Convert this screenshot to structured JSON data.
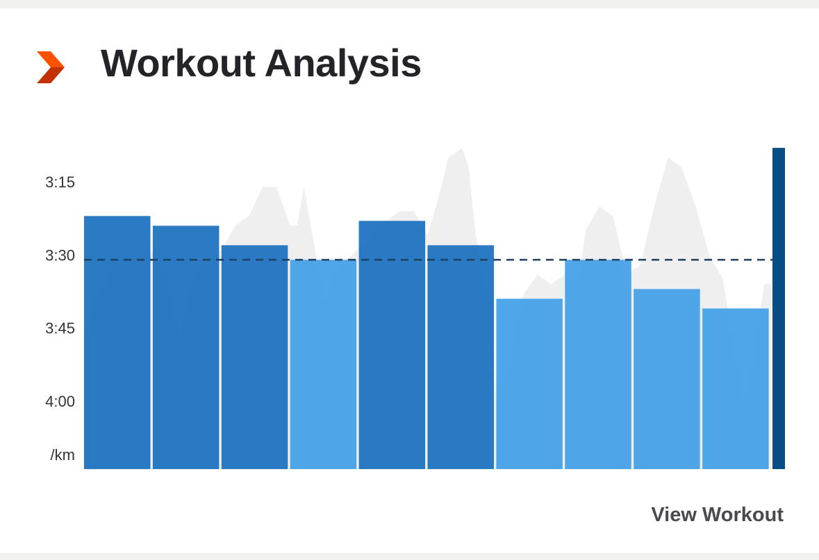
{
  "header": {
    "title": "Workout Analysis",
    "brand_icon": "chevron-logo-icon",
    "brand_colors": [
      "#fc5200",
      "#c43100"
    ]
  },
  "footer": {
    "view_label": "View Workout"
  },
  "chart_data": {
    "type": "bar",
    "y_axis": {
      "ticks": [
        "3:15",
        "3:30",
        "3:45",
        "4:00"
      ],
      "tick_values_sec": [
        195,
        210,
        225,
        240
      ],
      "unit_label": "/km",
      "reversed": true,
      "range_sec": [
        181,
        254
      ]
    },
    "average_pace_sec": 211,
    "splits": [
      {
        "pace_sec": 202,
        "color": "#1a70c0"
      },
      {
        "pace_sec": 204,
        "color": "#1a70c0"
      },
      {
        "pace_sec": 208,
        "color": "#1a70c0"
      },
      {
        "pace_sec": 211,
        "color": "#42a0e8"
      },
      {
        "pace_sec": 203,
        "color": "#1a70c0"
      },
      {
        "pace_sec": 208,
        "color": "#1a70c0"
      },
      {
        "pace_sec": 219,
        "color": "#42a0e8"
      },
      {
        "pace_sec": 211,
        "color": "#42a0e8"
      },
      {
        "pace_sec": 217,
        "color": "#42a0e8"
      },
      {
        "pace_sec": 221,
        "color": "#42a0e8"
      }
    ],
    "final_partial_split": {
      "pace_sec": 188,
      "color": "#064d84"
    },
    "background_pace_trace": [
      [
        0.0,
        226
      ],
      [
        0.2,
        218
      ],
      [
        0.4,
        211
      ],
      [
        0.7,
        209
      ],
      [
        0.9,
        210
      ],
      [
        1.1,
        208
      ],
      [
        1.2,
        214
      ],
      [
        1.4,
        226
      ],
      [
        1.55,
        215
      ],
      [
        1.7,
        212
      ],
      [
        2.0,
        209
      ],
      [
        2.2,
        204
      ],
      [
        2.4,
        202
      ],
      [
        2.6,
        196
      ],
      [
        2.8,
        196
      ],
      [
        3.0,
        204
      ],
      [
        3.1,
        204
      ],
      [
        3.2,
        196
      ],
      [
        3.3,
        204
      ],
      [
        3.5,
        220
      ],
      [
        3.7,
        212
      ],
      [
        3.9,
        210
      ],
      [
        4.3,
        204
      ],
      [
        4.6,
        201
      ],
      [
        4.8,
        201
      ],
      [
        5.0,
        206
      ],
      [
        5.2,
        196
      ],
      [
        5.3,
        190
      ],
      [
        5.5,
        188
      ],
      [
        5.6,
        192
      ],
      [
        5.7,
        206
      ],
      [
        5.9,
        218
      ],
      [
        6.0,
        240
      ],
      [
        6.2,
        232
      ],
      [
        6.4,
        218
      ],
      [
        6.6,
        214
      ],
      [
        6.8,
        216
      ],
      [
        7.0,
        214
      ],
      [
        7.2,
        216
      ],
      [
        7.3,
        205
      ],
      [
        7.5,
        200
      ],
      [
        7.7,
        202
      ],
      [
        7.9,
        214
      ],
      [
        8.1,
        212
      ],
      [
        8.3,
        200
      ],
      [
        8.5,
        190
      ],
      [
        8.7,
        192
      ],
      [
        8.9,
        200
      ],
      [
        9.1,
        210
      ],
      [
        9.3,
        215
      ],
      [
        9.5,
        232
      ],
      [
        9.6,
        242
      ],
      [
        9.7,
        235
      ],
      [
        9.9,
        216
      ],
      [
        10.0,
        216
      ]
    ]
  }
}
